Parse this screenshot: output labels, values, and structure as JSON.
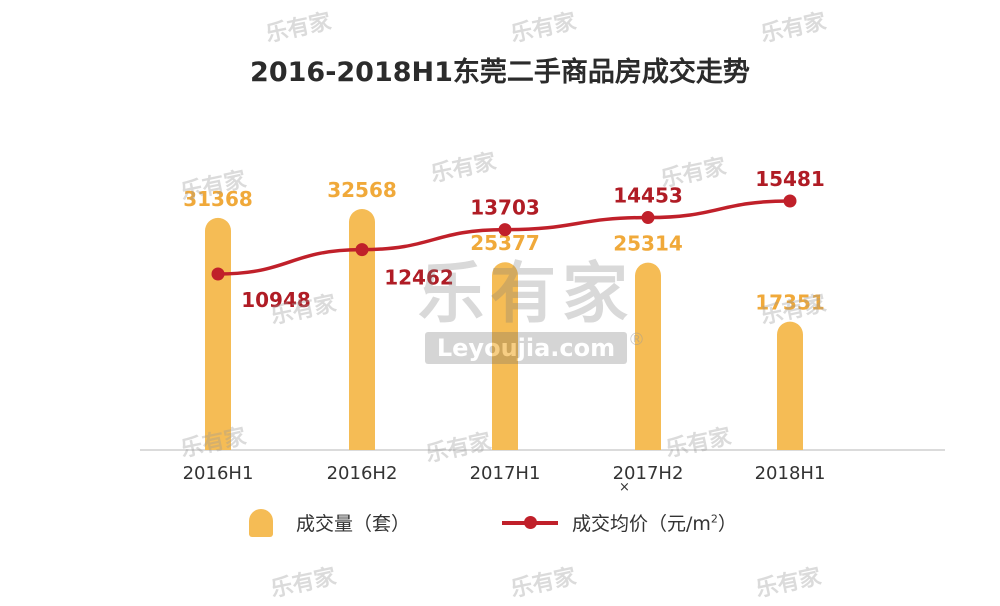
{
  "chart_data": {
    "type": "bar",
    "title": "2016-2018H1东莞二手商品房成交走势",
    "categories": [
      "2016H1",
      "2016H2",
      "2017H1",
      "2017H2",
      "2018H1"
    ],
    "series": [
      {
        "name": "成交量（套）",
        "type": "bar",
        "values": [
          31368,
          32568,
          25377,
          25314,
          17351
        ],
        "color": "#f5bc55"
      },
      {
        "name": "成交均价（元/m²）",
        "type": "line",
        "values": [
          10948,
          12462,
          13703,
          14453,
          15481
        ],
        "color": "#c0202a"
      }
    ],
    "xlabel": "",
    "ylabel": "",
    "grid": false,
    "legend_position": "bottom"
  },
  "legend": {
    "bar_label": "成交量（套）",
    "line_label_prefix": "成交均价（元/m",
    "line_label_sup": "2",
    "line_label_suffix": "）"
  },
  "watermark": {
    "text_cn": "乐有家",
    "text_en": "Leyoujia.com",
    "mark": "®"
  },
  "stray_mark": "×"
}
